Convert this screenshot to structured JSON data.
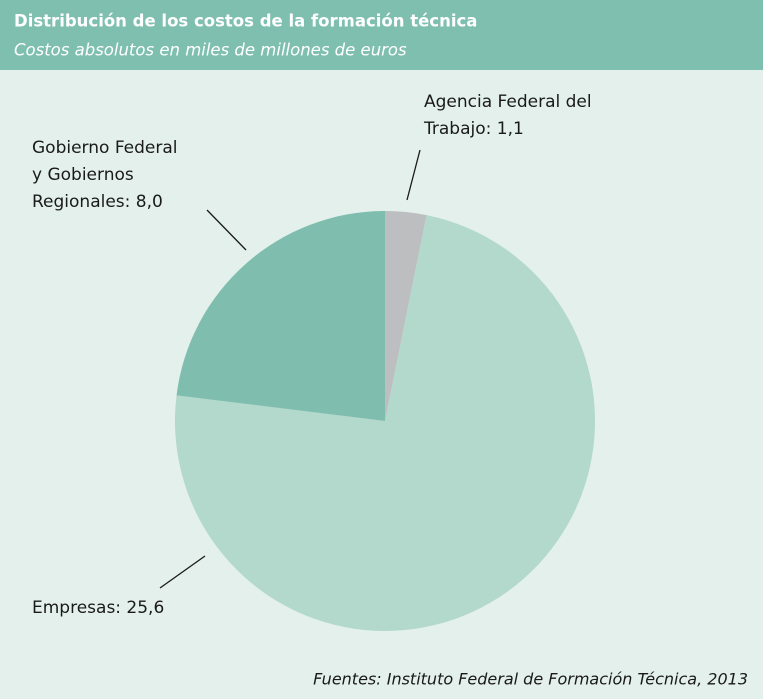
{
  "chart_data": {
    "type": "pie",
    "title": "Distribución de los costos de la formación técnica",
    "subtitle": "Costos absolutos en miles de millones de euros",
    "values": [
      1.1,
      25.6,
      8.0
    ],
    "value_labels": [
      [
        "Agencia Federal del",
        "Trabajo: 1,1"
      ],
      [
        "Empresas: 25,6"
      ],
      [
        "Gobierno Federal",
        "y Gobiernos",
        "Regionales: 8,0"
      ]
    ],
    "colors": [
      "#bcbec0",
      "#b3d8cc",
      "#7fbdae"
    ],
    "source": "Fuentes: Instituto Federal de Formación Técnica, 2013"
  }
}
